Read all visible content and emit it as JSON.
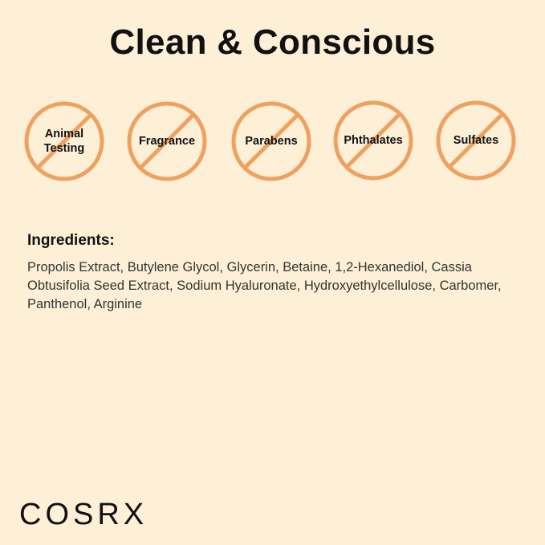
{
  "title": "Clean & Conscious",
  "colors": {
    "background": "#FDF0D7",
    "accent": "#F0A060"
  },
  "badges": [
    {
      "label": "Animal Testing",
      "icon": "prohibited-icon"
    },
    {
      "label": "Fragrance",
      "icon": "prohibited-icon"
    },
    {
      "label": "Parabens",
      "icon": "prohibited-icon"
    },
    {
      "label": "Phthalates",
      "icon": "prohibited-icon"
    },
    {
      "label": "Sulfates",
      "icon": "prohibited-icon"
    }
  ],
  "ingredients": {
    "heading": "Ingredients:",
    "text": "Propolis Extract, Butylene Glycol, Glycerin, Betaine, 1,2-Hexanediol, Cassia Obtusifolia Seed Extract, Sodium Hyaluronate, Hydroxyethylcellulose, Carbomer, Panthenol, Arginine"
  },
  "brand": "COSRX"
}
